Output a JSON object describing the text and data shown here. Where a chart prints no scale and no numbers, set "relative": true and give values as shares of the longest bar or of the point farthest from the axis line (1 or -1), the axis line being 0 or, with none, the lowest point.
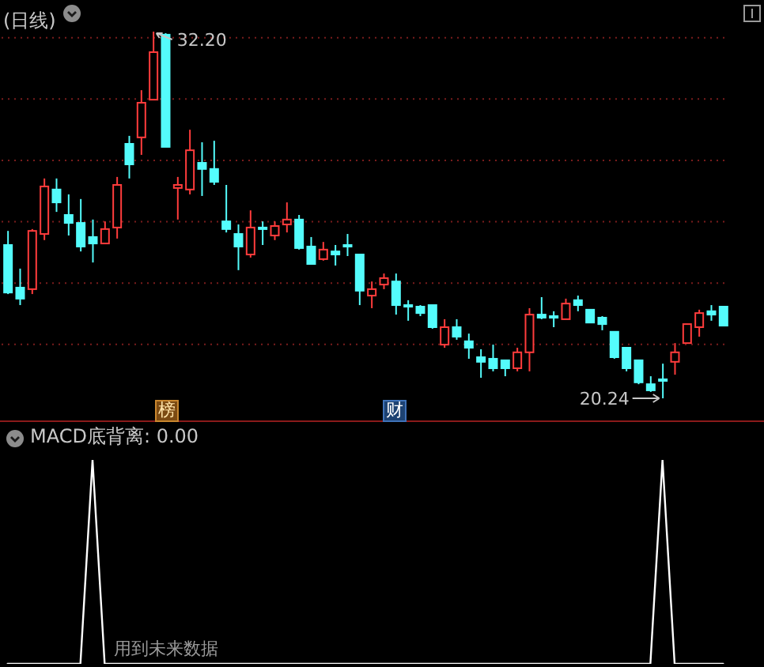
{
  "chart_data": [
    {
      "type": "candlestick",
      "title": "(日线)",
      "tick_labels": false,
      "grid": "y",
      "yticks": [
        {
          "value": 22,
          "label": null
        },
        {
          "value": 24,
          "label": null
        },
        {
          "value": 26,
          "label": null
        },
        {
          "value": 28,
          "label": null
        },
        {
          "value": 30,
          "label": null
        },
        {
          "value": 32,
          "label": null
        }
      ],
      "categories": [
        null,
        null,
        null,
        null,
        null,
        null,
        null,
        null,
        null,
        null,
        null,
        null,
        null,
        null,
        null,
        null,
        null,
        null,
        null,
        null,
        null,
        null,
        null,
        null,
        null,
        null,
        null,
        null,
        null,
        null,
        null,
        null,
        null,
        null,
        null,
        null,
        null,
        null,
        null,
        null,
        null,
        null,
        null,
        null,
        null,
        null,
        null,
        null,
        null,
        null,
        null,
        null,
        null,
        null,
        null,
        null,
        null,
        null,
        null,
        null
      ],
      "ohlc": [
        [
          25.24,
          25.7,
          23.64,
          23.69
        ],
        [
          23.85,
          24.47,
          23.28,
          23.49
        ],
        [
          23.8,
          25.76,
          23.64,
          25.7
        ],
        [
          25.6,
          27.41,
          25.4,
          27.15
        ],
        [
          27.05,
          27.41,
          26.32,
          26.63
        ],
        [
          26.22,
          26.89,
          25.55,
          25.96
        ],
        [
          25.96,
          26.74,
          25.03,
          25.19
        ],
        [
          25.5,
          26.07,
          24.67,
          25.29
        ],
        [
          25.29,
          26.01,
          25.29,
          25.76
        ],
        [
          25.81,
          27.46,
          25.45,
          27.2
        ],
        [
          28.54,
          28.8,
          27.41,
          27.87
        ],
        [
          28.75,
          30.29,
          28.18,
          29.88
        ],
        [
          29.98,
          32.2,
          29.98,
          31.53
        ],
        [
          32.1,
          32.15,
          28.44,
          28.44
        ],
        [
          27.1,
          27.46,
          26.07,
          27.2
        ],
        [
          27.05,
          29.0,
          26.89,
          28.33
        ],
        [
          27.92,
          28.59,
          26.84,
          27.72
        ],
        [
          27.72,
          28.64,
          27.2,
          27.3
        ],
        [
          26.01,
          27.2,
          25.65,
          25.76
        ],
        [
          25.6,
          25.91,
          24.42,
          25.19
        ],
        [
          24.93,
          26.37,
          24.83,
          25.81
        ],
        [
          25.81,
          26.01,
          25.24,
          25.76
        ],
        [
          25.55,
          26.01,
          25.4,
          25.86
        ],
        [
          25.91,
          26.63,
          25.65,
          26.07
        ],
        [
          26.07,
          26.22,
          25.09,
          25.14
        ],
        [
          25.19,
          25.5,
          24.62,
          24.62
        ],
        [
          24.78,
          25.34,
          24.73,
          25.09
        ],
        [
          25.03,
          25.24,
          24.57,
          24.93
        ],
        [
          25.24,
          25.6,
          24.88,
          25.19
        ],
        [
          24.93,
          24.93,
          23.28,
          23.75
        ],
        [
          23.59,
          24.05,
          23.18,
          23.8
        ],
        [
          23.95,
          24.31,
          23.8,
          24.16
        ],
        [
          24.05,
          24.31,
          22.97,
          23.28
        ],
        [
          23.28,
          23.44,
          22.77,
          23.23
        ],
        [
          23.23,
          23.28,
          22.92,
          23.02
        ],
        [
          23.28,
          23.28,
          22.51,
          22.56
        ],
        [
          21.99,
          22.82,
          21.89,
          22.56
        ],
        [
          22.56,
          22.82,
          22.15,
          22.25
        ],
        [
          22.1,
          22.35,
          21.53,
          21.89
        ],
        [
          21.58,
          21.84,
          20.91,
          21.43
        ],
        [
          21.53,
          21.99,
          21.12,
          21.22
        ],
        [
          21.48,
          21.48,
          20.96,
          21.22
        ],
        [
          21.22,
          21.89,
          21.12,
          21.74
        ],
        [
          21.74,
          23.18,
          21.12,
          22.97
        ],
        [
          22.97,
          23.54,
          22.82,
          22.87
        ],
        [
          22.92,
          23.08,
          22.56,
          22.87
        ],
        [
          22.82,
          23.49,
          22.82,
          23.33
        ],
        [
          23.44,
          23.59,
          23.08,
          23.28
        ],
        [
          23.13,
          23.13,
          22.71,
          22.71
        ],
        [
          22.87,
          22.92,
          22.46,
          22.66
        ],
        [
          22.41,
          22.41,
          21.53,
          21.58
        ],
        [
          21.89,
          21.89,
          21.12,
          21.22
        ],
        [
          21.48,
          21.48,
          20.7,
          20.76
        ],
        [
          20.7,
          20.96,
          20.45,
          20.5
        ],
        [
          20.86,
          21.37,
          20.24,
          20.81
        ],
        [
          21.43,
          22.04,
          21.01,
          21.74
        ],
        [
          22.04,
          22.66,
          22.04,
          22.66
        ],
        [
          22.56,
          23.13,
          22.25,
          23.02
        ],
        [
          23.08,
          23.28,
          22.77,
          22.97
        ],
        [
          23.23,
          23.23,
          22.61,
          22.61
        ]
      ],
      "colors": [
        "#54fcfc",
        "#54fcfc",
        "#ff3c3c",
        "#ff3c3c",
        "#54fcfc",
        "#54fcfc",
        "#54fcfc",
        "#54fcfc",
        "#ff3c3c",
        "#ff3c3c",
        "#54fcfc",
        "#ff3c3c",
        "#ff3c3c",
        "#54fcfc",
        "#ff3c3c",
        "#ff3c3c",
        "#54fcfc",
        "#54fcfc",
        "#54fcfc",
        "#54fcfc",
        "#ff3c3c",
        "#54fcfc",
        "#ff3c3c",
        "#ff3c3c",
        "#54fcfc",
        "#54fcfc",
        "#ff3c3c",
        "#54fcfc",
        "#54fcfc",
        "#54fcfc",
        "#ff3c3c",
        "#ff3c3c",
        "#54fcfc",
        "#54fcfc",
        "#54fcfc",
        "#54fcfc",
        "#ff3c3c",
        "#54fcfc",
        "#54fcfc",
        "#54fcfc",
        "#54fcfc",
        "#54fcfc",
        "#ff3c3c",
        "#ff3c3c",
        "#54fcfc",
        "#54fcfc",
        "#ff3c3c",
        "#54fcfc",
        "#54fcfc",
        "#54fcfc",
        "#54fcfc",
        "#54fcfc",
        "#54fcfc",
        "#54fcfc",
        "#54fcfc",
        "#ff3c3c",
        "#ff3c3c",
        "#ff3c3c",
        "#54fcfc",
        "#54fcfc"
      ],
      "annotations": [
        "32.20",
        "20.24",
        "榜",
        "财"
      ]
    },
    {
      "type": "line",
      "title": "MACD底背离: 0.00",
      "relative": true,
      "tick_labels": false,
      "categories": [
        null,
        null,
        null,
        null,
        null,
        null,
        null,
        null,
        null,
        null,
        null,
        null,
        null,
        null,
        null,
        null,
        null,
        null,
        null,
        null,
        null,
        null,
        null,
        null,
        null,
        null,
        null,
        null,
        null,
        null,
        null,
        null,
        null,
        null,
        null,
        null,
        null,
        null,
        null,
        null,
        null,
        null,
        null,
        null,
        null,
        null,
        null,
        null,
        null,
        null,
        null,
        null,
        null,
        null,
        null,
        null,
        null,
        null,
        null,
        null
      ],
      "series": [
        {
          "color": "#ffffff",
          "values": [
            0,
            0,
            0,
            0,
            0,
            0,
            0,
            1,
            0,
            0,
            0,
            0,
            0,
            0,
            0,
            0,
            0,
            0,
            0,
            0,
            0,
            0,
            0,
            0,
            0,
            0,
            0,
            0,
            0,
            0,
            0,
            0,
            0,
            0,
            0,
            0,
            0,
            0,
            0,
            0,
            0,
            0,
            0,
            0,
            0,
            0,
            0,
            0,
            0,
            0,
            0,
            0,
            0,
            0,
            1,
            0,
            0,
            0,
            0,
            0
          ]
        }
      ],
      "annotations": [
        "用到未来数据"
      ]
    }
  ]
}
